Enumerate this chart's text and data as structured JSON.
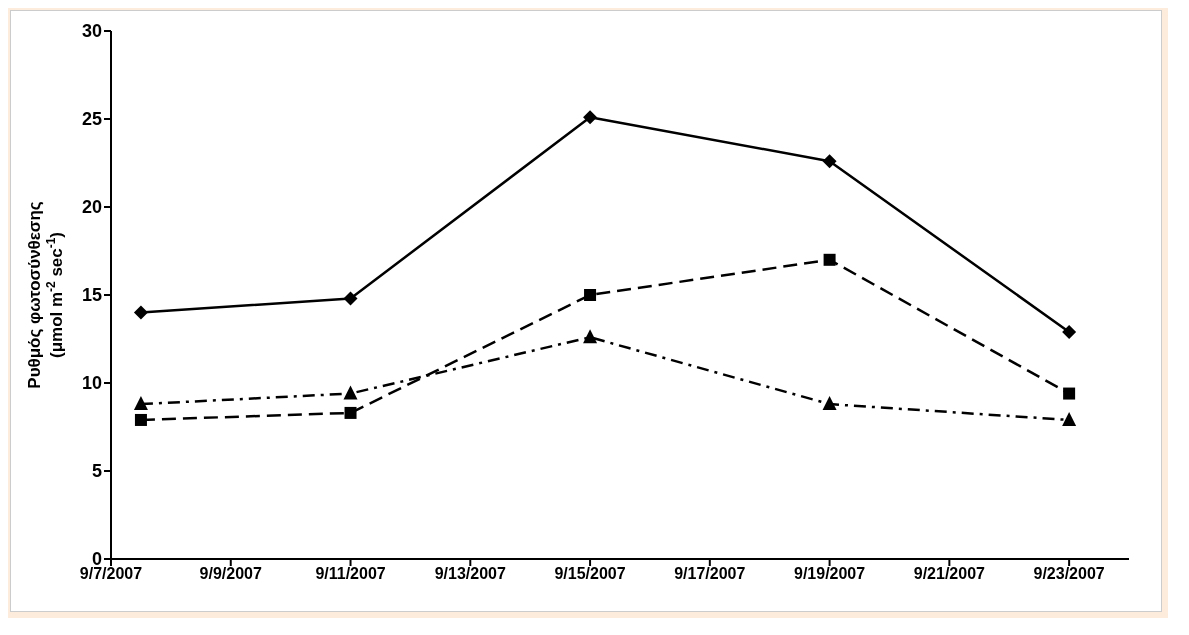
{
  "chart_data": {
    "type": "line",
    "ylabel": "Ρυθμός φωτοσύνθεσης\n(μmol m$^{-2}$ sec$^{-1}$)",
    "x": [
      "2007-09-07T12:00",
      "2007-09-11",
      "2007-09-15",
      "2007-09-19",
      "2007-09-23"
    ],
    "series": [
      {
        "color": "#000000",
        "marker": "diamond",
        "line_style": "solid",
        "values": [
          14.0,
          14.8,
          25.1,
          22.6,
          12.9
        ]
      },
      {
        "color": "#000000",
        "marker": "square",
        "line_style": "dashed",
        "values": [
          7.9,
          8.3,
          15.0,
          17.0,
          9.4
        ]
      },
      {
        "color": "#000000",
        "marker": "triangle",
        "line_style": "dashdot",
        "values": [
          8.8,
          9.4,
          12.6,
          8.8,
          7.9
        ]
      }
    ],
    "xlim": [
      "2007-09-07",
      "2007-09-24"
    ],
    "xticks": [
      {
        "value": "2007-09-07",
        "label": "9/7/2007"
      },
      {
        "value": "2007-09-09",
        "label": "9/9/2007"
      },
      {
        "value": "2007-09-11",
        "label": "9/11/2007"
      },
      {
        "value": "2007-09-13",
        "label": "9/13/2007"
      },
      {
        "value": "2007-09-15",
        "label": "9/15/2007"
      },
      {
        "value": "2007-09-17",
        "label": "9/17/2007"
      },
      {
        "value": "2007-09-19",
        "label": "9/19/2007"
      },
      {
        "value": "2007-09-21",
        "label": "9/21/2007"
      },
      {
        "value": "2007-09-23",
        "label": "9/23/2007"
      }
    ],
    "ylim": [
      0,
      30
    ],
    "yticks": [
      0,
      5,
      10,
      15,
      20,
      25,
      30
    ]
  }
}
